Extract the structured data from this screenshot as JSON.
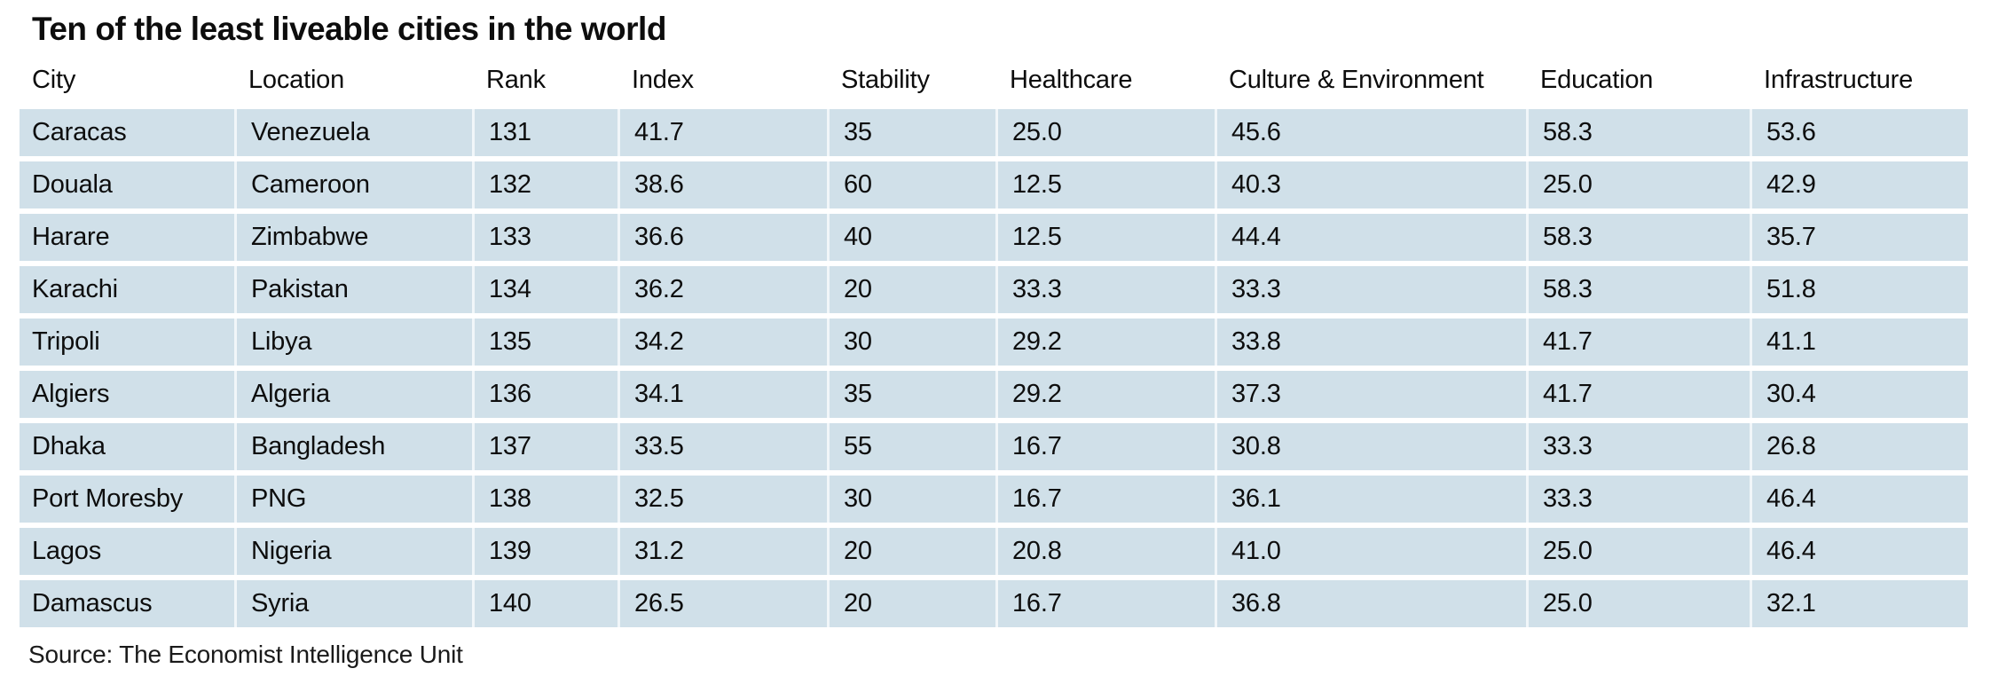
{
  "chart_data": {
    "type": "table",
    "title": "Ten of the least liveable cities in the world",
    "columns": [
      "City",
      "Location",
      "Rank",
      "Index",
      "Stability",
      "Healthcare",
      "Culture & Environment",
      "Education",
      "Infrastructure"
    ],
    "rows": [
      [
        "Caracas",
        "Venezuela",
        "131",
        "41.7",
        "35",
        "25.0",
        "45.6",
        "58.3",
        "53.6"
      ],
      [
        "Douala",
        "Cameroon",
        "132",
        "38.6",
        "60",
        "12.5",
        "40.3",
        "25.0",
        "42.9"
      ],
      [
        "Harare",
        "Zimbabwe",
        "133",
        "36.6",
        "40",
        "12.5",
        "44.4",
        "58.3",
        "35.7"
      ],
      [
        "Karachi",
        "Pakistan",
        "134",
        "36.2",
        "20",
        "33.3",
        "33.3",
        "58.3",
        "51.8"
      ],
      [
        "Tripoli",
        "Libya",
        "135",
        "34.2",
        "30",
        "29.2",
        "33.8",
        "41.7",
        "41.1"
      ],
      [
        "Algiers",
        "Algeria",
        "136",
        "34.1",
        "35",
        "29.2",
        "37.3",
        "41.7",
        "30.4"
      ],
      [
        "Dhaka",
        "Bangladesh",
        "137",
        "33.5",
        "55",
        "16.7",
        "30.8",
        "33.3",
        "26.8"
      ],
      [
        "Port Moresby",
        "PNG",
        "138",
        "32.5",
        "30",
        "16.7",
        "36.1",
        "33.3",
        "46.4"
      ],
      [
        "Lagos",
        "Nigeria",
        "139",
        "31.2",
        "20",
        "20.8",
        "41.0",
        "25.0",
        "46.4"
      ],
      [
        "Damascus",
        "Syria",
        "140",
        "26.5",
        "20",
        "16.7",
        "36.8",
        "25.0",
        "32.1"
      ]
    ],
    "source": "Source: The Economist Intelligence Unit",
    "layout": {
      "grid": "off",
      "row_banding": "all-rows-highlighted"
    }
  },
  "colors": {
    "row_bg": "#d0e0e9",
    "cell_divider": "rgba(255,255,255,0.7)",
    "text": "#0d0d0d",
    "background": "#ffffff"
  }
}
